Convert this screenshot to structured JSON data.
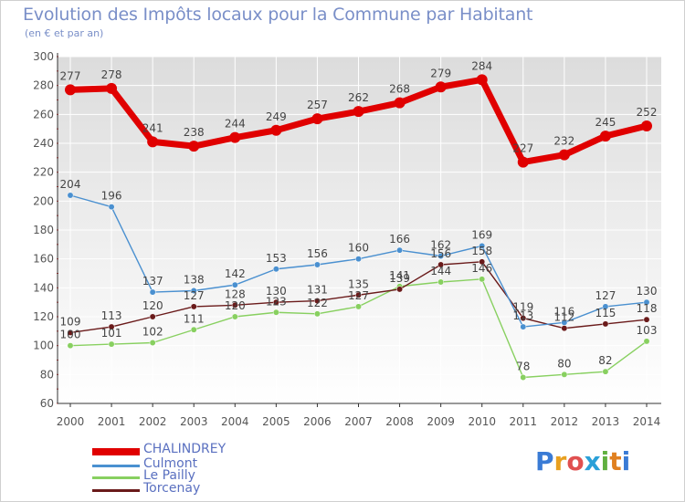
{
  "header": {
    "title": "Evolution des Impôts locaux pour la Commune par Habitant",
    "subtitle": "(en € et par an)"
  },
  "logo": {
    "text": "Proxiti"
  },
  "chart_data": {
    "type": "line",
    "title": "Evolution des Impôts locaux pour la Commune par Habitant",
    "subtitle": "(en € et par an)",
    "xlabel": "",
    "ylabel": "",
    "x": [
      "2000",
      "2001",
      "2002",
      "2003",
      "2004",
      "2005",
      "2006",
      "2007",
      "2008",
      "2009",
      "2010",
      "2011",
      "2012",
      "2013",
      "2014"
    ],
    "ylim": [
      60,
      300
    ],
    "yticks": [
      60,
      80,
      100,
      120,
      140,
      160,
      180,
      200,
      220,
      240,
      260,
      280,
      300
    ],
    "grid": true,
    "legend": "bottom-left",
    "series": [
      {
        "name": "CHALINDREY",
        "color": "#e00000",
        "values": [
          277,
          278,
          241,
          238,
          244,
          249,
          257,
          262,
          268,
          279,
          284,
          227,
          232,
          245,
          252
        ]
      },
      {
        "name": "Culmont",
        "color": "#4a90d0",
        "values": [
          204,
          196,
          137,
          138,
          142,
          153,
          156,
          160,
          166,
          162,
          169,
          113,
          116,
          127,
          130
        ]
      },
      {
        "name": "Le Pailly",
        "color": "#88d060",
        "values": [
          100,
          101,
          102,
          111,
          120,
          123,
          122,
          127,
          141,
          144,
          146,
          78,
          80,
          82,
          103
        ]
      },
      {
        "name": "Torcenay",
        "color": "#6a1a1a",
        "values": [
          109,
          113,
          120,
          127,
          128,
          130,
          131,
          135,
          139,
          156,
          158,
          119,
          112,
          115,
          118
        ]
      }
    ]
  }
}
